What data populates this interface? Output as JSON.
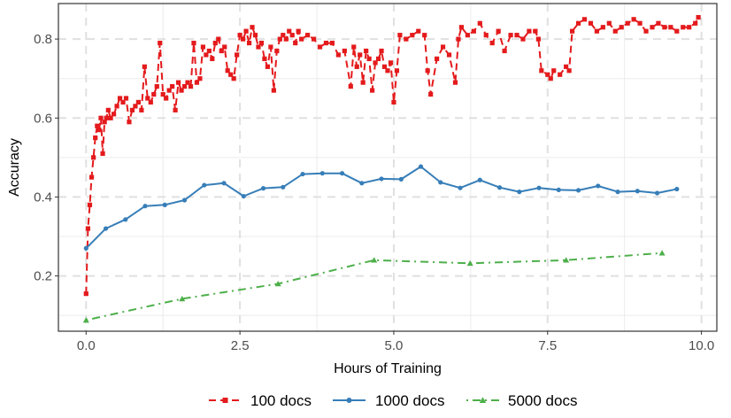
{
  "chart_data": {
    "type": "line",
    "title": "",
    "xlabel": "Hours of Training",
    "ylabel": "Accuracy",
    "xlim": [
      -0.45,
      10.25
    ],
    "ylim": [
      0.06,
      0.89
    ],
    "x_ticks": [
      0,
      2.5,
      5,
      7.5,
      10
    ],
    "x_tick_labels": [
      "0.0",
      "2.5",
      "5.0",
      "7.5",
      "10.0"
    ],
    "y_ticks": [
      0.2,
      0.4,
      0.6,
      0.8
    ],
    "y_tick_labels": [
      "0.2",
      "0.4",
      "0.6",
      "0.8"
    ],
    "grid": true,
    "legend_position": "bottom",
    "series": [
      {
        "name": "100 docs",
        "color": "#e41a1c",
        "line_style": "dashed",
        "marker": "square",
        "x": [
          0.0,
          0.03,
          0.06,
          0.09,
          0.12,
          0.15,
          0.18,
          0.21,
          0.24,
          0.27,
          0.3,
          0.33,
          0.36,
          0.4,
          0.45,
          0.5,
          0.55,
          0.6,
          0.65,
          0.7,
          0.75,
          0.8,
          0.85,
          0.9,
          0.95,
          1.0,
          1.05,
          1.1,
          1.15,
          1.2,
          1.25,
          1.3,
          1.35,
          1.4,
          1.45,
          1.5,
          1.55,
          1.6,
          1.65,
          1.7,
          1.75,
          1.8,
          1.85,
          1.9,
          1.95,
          2.0,
          2.05,
          2.1,
          2.15,
          2.2,
          2.25,
          2.3,
          2.35,
          2.4,
          2.45,
          2.5,
          2.55,
          2.6,
          2.65,
          2.7,
          2.75,
          2.8,
          2.85,
          2.9,
          2.95,
          3.0,
          3.05,
          3.1,
          3.15,
          3.2,
          3.25,
          3.3,
          3.35,
          3.4,
          3.45,
          3.5,
          3.6,
          3.7,
          3.8,
          3.9,
          4.0,
          4.1,
          4.2,
          4.3,
          4.35,
          4.4,
          4.45,
          4.5,
          4.55,
          4.6,
          4.65,
          4.7,
          4.75,
          4.8,
          4.85,
          4.9,
          4.95,
          5.0,
          5.05,
          5.1,
          5.2,
          5.3,
          5.4,
          5.5,
          5.55,
          5.6,
          5.7,
          5.8,
          5.9,
          6.0,
          6.05,
          6.1,
          6.2,
          6.3,
          6.4,
          6.5,
          6.6,
          6.7,
          6.8,
          6.9,
          7.0,
          7.1,
          7.2,
          7.3,
          7.35,
          7.4,
          7.5,
          7.55,
          7.6,
          7.7,
          7.8,
          7.85,
          7.9,
          8.0,
          8.1,
          8.2,
          8.3,
          8.4,
          8.5,
          8.6,
          8.7,
          8.8,
          8.9,
          9.0,
          9.1,
          9.2,
          9.3,
          9.4,
          9.5,
          9.6,
          9.7,
          9.8,
          9.9,
          9.95
        ],
        "y": [
          0.155,
          0.32,
          0.38,
          0.45,
          0.5,
          0.55,
          0.58,
          0.57,
          0.6,
          0.51,
          0.59,
          0.6,
          0.62,
          0.6,
          0.61,
          0.63,
          0.65,
          0.64,
          0.65,
          0.59,
          0.62,
          0.63,
          0.64,
          0.62,
          0.73,
          0.65,
          0.64,
          0.66,
          0.68,
          0.79,
          0.66,
          0.65,
          0.67,
          0.68,
          0.62,
          0.69,
          0.67,
          0.68,
          0.69,
          0.68,
          0.79,
          0.69,
          0.7,
          0.78,
          0.76,
          0.77,
          0.75,
          0.79,
          0.8,
          0.77,
          0.78,
          0.72,
          0.71,
          0.7,
          0.76,
          0.81,
          0.8,
          0.82,
          0.79,
          0.83,
          0.81,
          0.78,
          0.79,
          0.75,
          0.73,
          0.78,
          0.67,
          0.77,
          0.8,
          0.81,
          0.8,
          0.82,
          0.81,
          0.79,
          0.82,
          0.8,
          0.81,
          0.8,
          0.78,
          0.79,
          0.79,
          0.76,
          0.77,
          0.68,
          0.78,
          0.73,
          0.76,
          0.69,
          0.77,
          0.75,
          0.67,
          0.74,
          0.75,
          0.77,
          0.73,
          0.72,
          0.74,
          0.64,
          0.72,
          0.81,
          0.8,
          0.81,
          0.82,
          0.81,
          0.72,
          0.66,
          0.75,
          0.78,
          0.76,
          0.69,
          0.8,
          0.83,
          0.81,
          0.82,
          0.84,
          0.81,
          0.79,
          0.82,
          0.77,
          0.81,
          0.81,
          0.8,
          0.82,
          0.82,
          0.8,
          0.72,
          0.71,
          0.7,
          0.72,
          0.71,
          0.73,
          0.72,
          0.82,
          0.84,
          0.85,
          0.84,
          0.82,
          0.83,
          0.84,
          0.82,
          0.83,
          0.84,
          0.85,
          0.84,
          0.82,
          0.83,
          0.84,
          0.83,
          0.83,
          0.82,
          0.83,
          0.83,
          0.84,
          0.855
        ]
      },
      {
        "name": "1000 docs",
        "color": "#377eb8",
        "line_style": "solid",
        "marker": "circle",
        "x": [
          0.0,
          0.32,
          0.64,
          0.96,
          1.28,
          1.6,
          1.92,
          2.24,
          2.56,
          2.88,
          3.2,
          3.52,
          3.84,
          4.16,
          4.48,
          4.8,
          5.12,
          5.44,
          5.76,
          6.08,
          6.4,
          6.72,
          7.04,
          7.36,
          7.68,
          8.0,
          8.32,
          8.64,
          8.96,
          9.28,
          9.6
        ],
        "y": [
          0.27,
          0.32,
          0.343,
          0.377,
          0.38,
          0.392,
          0.43,
          0.435,
          0.402,
          0.422,
          0.425,
          0.458,
          0.46,
          0.46,
          0.435,
          0.446,
          0.445,
          0.477,
          0.437,
          0.423,
          0.443,
          0.424,
          0.413,
          0.423,
          0.418,
          0.417,
          0.428,
          0.413,
          0.415,
          0.41,
          0.42
        ]
      },
      {
        "name": "5000 docs",
        "color": "#4daf4a",
        "line_style": "dotdash",
        "marker": "triangle",
        "x": [
          0.0,
          1.56,
          3.12,
          4.68,
          6.24,
          7.8,
          9.36
        ],
        "y": [
          0.088,
          0.142,
          0.18,
          0.24,
          0.232,
          0.24,
          0.258
        ]
      }
    ]
  }
}
